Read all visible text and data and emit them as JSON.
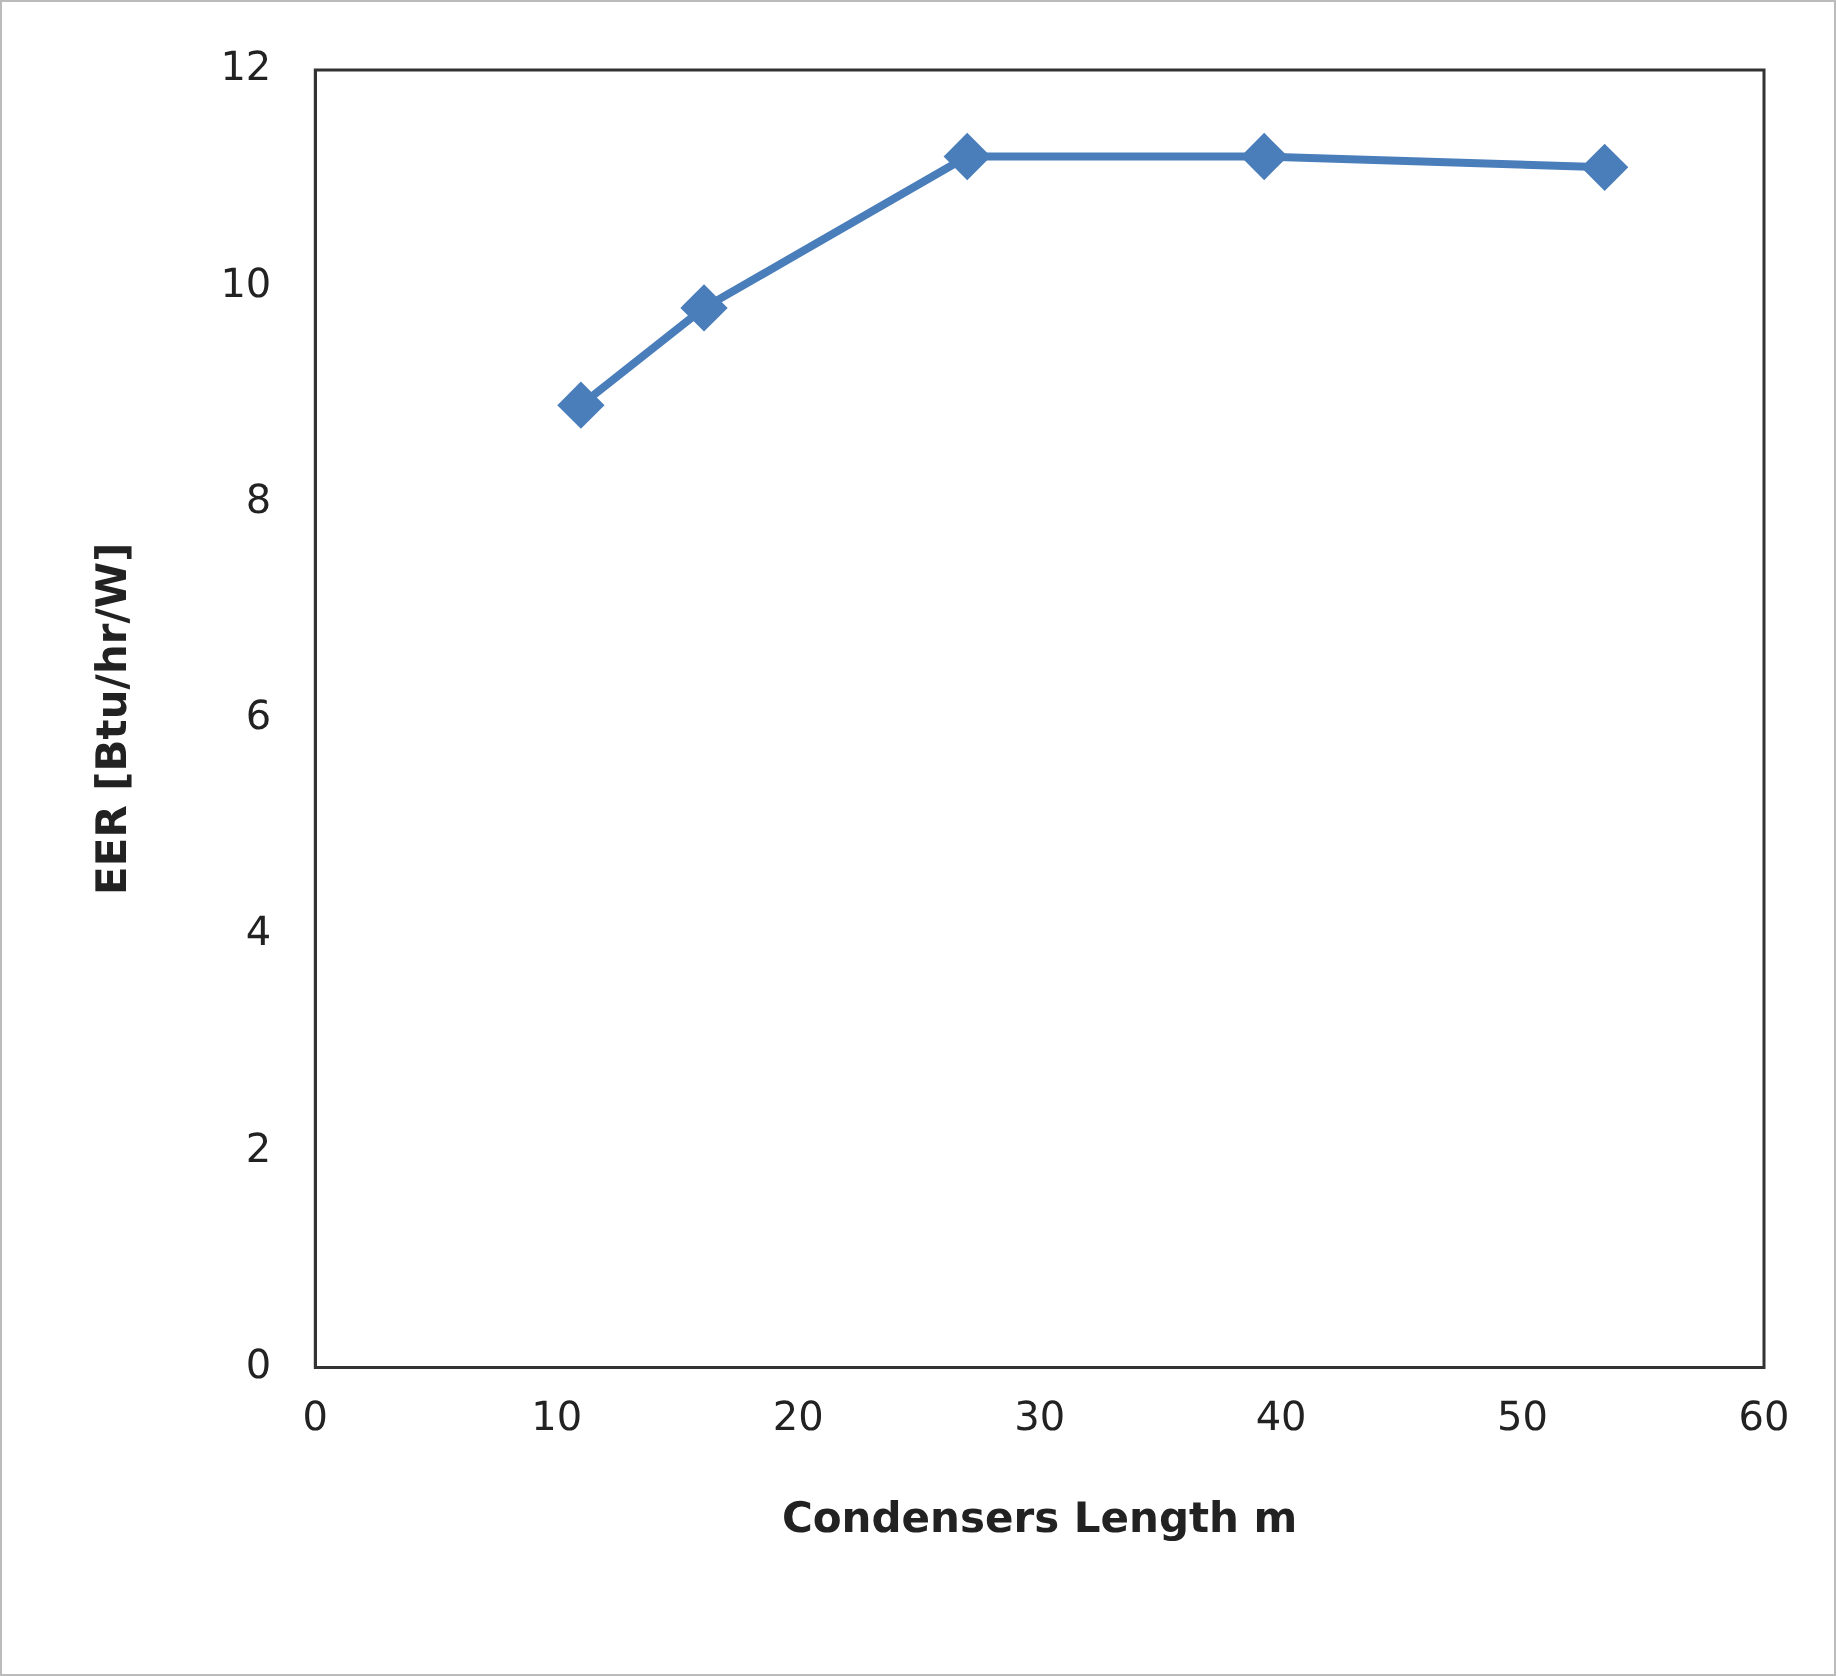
{
  "chart_data": {
    "type": "line",
    "xlabel": "Condensers Length m",
    "ylabel": "EER [Btu/hr/W]",
    "x": [
      11.0,
      16.1,
      27.0,
      39.3,
      53.4
    ],
    "series": [
      {
        "color": "#4a7ebb",
        "values": [
          8.9,
          9.8,
          11.2,
          11.2,
          11.1
        ]
      }
    ],
    "xlim": [
      0,
      60
    ],
    "xticks": [
      0,
      10,
      20,
      30,
      40,
      50,
      60
    ],
    "ylim": [
      0,
      12
    ],
    "yticks": [
      0,
      2,
      4,
      6,
      8,
      10,
      12
    ],
    "grid": false,
    "legend": false,
    "marker": "diamond",
    "line_style": "solid"
  }
}
